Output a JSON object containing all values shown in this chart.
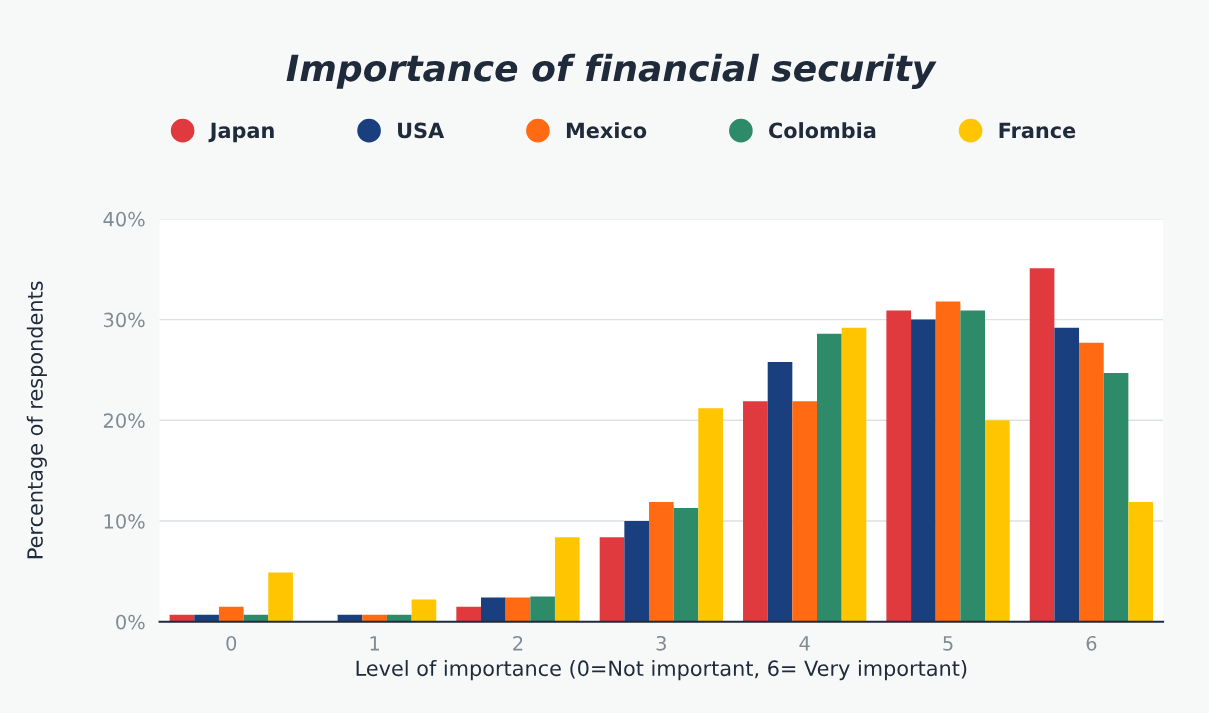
{
  "chart_data": {
    "type": "bar",
    "title": "Importance of financial security",
    "xlabel": "Level of importance (0=Not important, 6= Very important)",
    "ylabel": "Percentage of respondents",
    "categories": [
      "0",
      "1",
      "2",
      "3",
      "4",
      "5",
      "6"
    ],
    "series": [
      {
        "name": "Japan",
        "color": "#e03a3e",
        "values": [
          0.7,
          null,
          1.5,
          8.4,
          21.9,
          30.9,
          35.1
        ]
      },
      {
        "name": "USA",
        "color": "#1a3f7f",
        "values": [
          0.7,
          0.7,
          2.4,
          10.0,
          25.8,
          30.0,
          29.2
        ]
      },
      {
        "name": "Mexico",
        "color": "#ff6a13",
        "values": [
          1.5,
          0.7,
          2.4,
          11.9,
          21.9,
          31.8,
          27.7
        ]
      },
      {
        "name": "Colombia",
        "color": "#2e8b6a",
        "values": [
          0.7,
          0.7,
          2.5,
          11.3,
          28.6,
          30.9,
          24.7
        ]
      },
      {
        "name": "France",
        "color": "#ffc600",
        "values": [
          4.9,
          2.2,
          8.4,
          21.2,
          29.2,
          20.0,
          11.9
        ]
      }
    ],
    "ylim": [
      0,
      40
    ],
    "yticks": [
      {
        "value": 0,
        "label": "0%"
      },
      {
        "value": 10,
        "label": "10%"
      },
      {
        "value": 20,
        "label": "20%"
      },
      {
        "value": 30,
        "label": "30%"
      },
      {
        "value": 40,
        "label": "40%"
      }
    ],
    "grid": "y",
    "legend": "top",
    "marker": "circle"
  }
}
